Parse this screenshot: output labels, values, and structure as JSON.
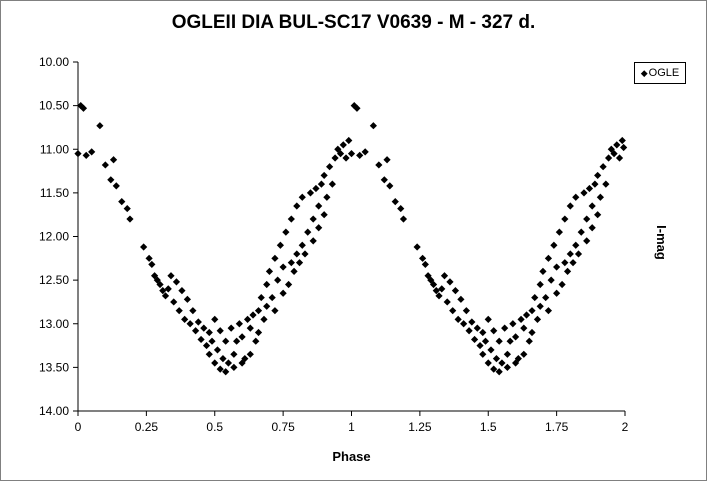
{
  "chart_data": {
    "type": "scatter",
    "title": "OGLEII DIA BUL-SC17 V0639 - M - 327 d.",
    "xlabel": "Phase",
    "ylabel": "I-mag",
    "xlim": [
      0,
      2
    ],
    "ylim": [
      10.0,
      14.0
    ],
    "y_inverted": true,
    "x_ticks": [
      "0",
      "0.25",
      "0.5",
      "0.75",
      "1",
      "1.25",
      "1.5",
      "1.75",
      "2"
    ],
    "x_tick_values": [
      0,
      0.25,
      0.5,
      0.75,
      1,
      1.25,
      1.5,
      1.75,
      2
    ],
    "y_ticks": [
      "10.00",
      "10.50",
      "11.00",
      "11.50",
      "12.00",
      "12.50",
      "13.00",
      "13.50",
      "14.00"
    ],
    "y_tick_values": [
      10.0,
      10.5,
      11.0,
      11.5,
      12.0,
      12.5,
      13.0,
      13.5,
      14.0
    ],
    "grid": false,
    "legend_position": "top-right",
    "marker": "diamond",
    "color": "#000000",
    "series": [
      {
        "name": "OGLE",
        "points": [
          [
            0.0,
            11.05
          ],
          [
            0.01,
            10.5
          ],
          [
            0.02,
            10.53
          ],
          [
            0.03,
            11.07
          ],
          [
            0.05,
            11.03
          ],
          [
            0.08,
            10.73
          ],
          [
            0.1,
            11.18
          ],
          [
            0.12,
            11.35
          ],
          [
            0.13,
            11.12
          ],
          [
            0.14,
            11.42
          ],
          [
            0.16,
            11.6
          ],
          [
            0.18,
            11.68
          ],
          [
            0.19,
            11.8
          ],
          [
            0.24,
            12.12
          ],
          [
            0.26,
            12.25
          ],
          [
            0.27,
            12.32
          ],
          [
            0.28,
            12.45
          ],
          [
            0.29,
            12.5
          ],
          [
            0.3,
            12.55
          ],
          [
            0.31,
            12.62
          ],
          [
            0.32,
            12.68
          ],
          [
            0.33,
            12.6
          ],
          [
            0.34,
            12.45
          ],
          [
            0.35,
            12.75
          ],
          [
            0.36,
            12.52
          ],
          [
            0.37,
            12.85
          ],
          [
            0.38,
            12.62
          ],
          [
            0.39,
            12.95
          ],
          [
            0.4,
            12.72
          ],
          [
            0.41,
            13.0
          ],
          [
            0.42,
            12.85
          ],
          [
            0.43,
            13.08
          ],
          [
            0.44,
            12.98
          ],
          [
            0.45,
            13.18
          ],
          [
            0.46,
            13.05
          ],
          [
            0.47,
            13.25
          ],
          [
            0.48,
            13.35
          ],
          [
            0.48,
            13.1
          ],
          [
            0.49,
            13.2
          ],
          [
            0.5,
            13.45
          ],
          [
            0.5,
            12.95
          ],
          [
            0.51,
            13.3
          ],
          [
            0.52,
            13.52
          ],
          [
            0.52,
            13.08
          ],
          [
            0.53,
            13.4
          ],
          [
            0.54,
            13.55
          ],
          [
            0.54,
            13.2
          ],
          [
            0.55,
            13.45
          ],
          [
            0.56,
            13.05
          ],
          [
            0.57,
            13.35
          ],
          [
            0.57,
            13.5
          ],
          [
            0.58,
            13.2
          ],
          [
            0.59,
            13.0
          ],
          [
            0.6,
            13.45
          ],
          [
            0.6,
            13.15
          ],
          [
            0.61,
            13.4
          ],
          [
            0.62,
            12.95
          ],
          [
            0.63,
            13.35
          ],
          [
            0.63,
            13.05
          ],
          [
            0.64,
            12.9
          ],
          [
            0.65,
            13.2
          ],
          [
            0.66,
            12.85
          ],
          [
            0.66,
            13.1
          ],
          [
            0.67,
            12.7
          ],
          [
            0.68,
            12.95
          ],
          [
            0.69,
            12.55
          ],
          [
            0.69,
            12.8
          ],
          [
            0.7,
            12.4
          ],
          [
            0.71,
            12.7
          ],
          [
            0.72,
            12.25
          ],
          [
            0.72,
            12.85
          ],
          [
            0.73,
            12.5
          ],
          [
            0.74,
            12.1
          ],
          [
            0.75,
            12.65
          ],
          [
            0.75,
            12.35
          ],
          [
            0.76,
            11.95
          ],
          [
            0.77,
            12.55
          ],
          [
            0.78,
            12.3
          ],
          [
            0.78,
            11.8
          ],
          [
            0.79,
            12.4
          ],
          [
            0.8,
            12.2
          ],
          [
            0.8,
            11.65
          ],
          [
            0.81,
            12.3
          ],
          [
            0.82,
            12.1
          ],
          [
            0.82,
            11.55
          ],
          [
            0.83,
            12.2
          ],
          [
            0.84,
            11.95
          ],
          [
            0.85,
            11.5
          ],
          [
            0.86,
            12.05
          ],
          [
            0.86,
            11.8
          ],
          [
            0.87,
            11.45
          ],
          [
            0.88,
            11.9
          ],
          [
            0.88,
            11.65
          ],
          [
            0.89,
            11.4
          ],
          [
            0.9,
            11.75
          ],
          [
            0.9,
            11.3
          ],
          [
            0.91,
            11.55
          ],
          [
            0.92,
            11.2
          ],
          [
            0.93,
            11.4
          ],
          [
            0.94,
            11.1
          ],
          [
            0.95,
            11.0
          ],
          [
            0.96,
            11.05
          ],
          [
            0.97,
            10.95
          ],
          [
            0.98,
            11.1
          ],
          [
            0.99,
            10.9
          ],
          [
            1.0,
            11.05
          ],
          [
            1.01,
            10.5
          ],
          [
            1.02,
            10.53
          ],
          [
            1.03,
            11.07
          ],
          [
            1.05,
            11.03
          ],
          [
            1.08,
            10.73
          ],
          [
            1.1,
            11.18
          ],
          [
            1.12,
            11.35
          ],
          [
            1.13,
            11.12
          ],
          [
            1.14,
            11.42
          ],
          [
            1.16,
            11.6
          ],
          [
            1.18,
            11.68
          ],
          [
            1.19,
            11.8
          ],
          [
            1.24,
            12.12
          ],
          [
            1.26,
            12.25
          ],
          [
            1.27,
            12.32
          ],
          [
            1.28,
            12.45
          ],
          [
            1.29,
            12.5
          ],
          [
            1.3,
            12.55
          ],
          [
            1.31,
            12.62
          ],
          [
            1.32,
            12.68
          ],
          [
            1.33,
            12.6
          ],
          [
            1.34,
            12.45
          ],
          [
            1.35,
            12.75
          ],
          [
            1.36,
            12.52
          ],
          [
            1.37,
            12.85
          ],
          [
            1.38,
            12.62
          ],
          [
            1.39,
            12.95
          ],
          [
            1.4,
            12.72
          ],
          [
            1.41,
            13.0
          ],
          [
            1.42,
            12.85
          ],
          [
            1.43,
            13.08
          ],
          [
            1.44,
            12.98
          ],
          [
            1.45,
            13.18
          ],
          [
            1.46,
            13.05
          ],
          [
            1.47,
            13.25
          ],
          [
            1.48,
            13.35
          ],
          [
            1.48,
            13.1
          ],
          [
            1.49,
            13.2
          ],
          [
            1.5,
            13.45
          ],
          [
            1.5,
            12.95
          ],
          [
            1.51,
            13.3
          ],
          [
            1.52,
            13.52
          ],
          [
            1.52,
            13.08
          ],
          [
            1.53,
            13.4
          ],
          [
            1.54,
            13.55
          ],
          [
            1.54,
            13.2
          ],
          [
            1.55,
            13.45
          ],
          [
            1.56,
            13.05
          ],
          [
            1.57,
            13.35
          ],
          [
            1.57,
            13.5
          ],
          [
            1.58,
            13.2
          ],
          [
            1.59,
            13.0
          ],
          [
            1.6,
            13.45
          ],
          [
            1.6,
            13.15
          ],
          [
            1.61,
            13.4
          ],
          [
            1.62,
            12.95
          ],
          [
            1.63,
            13.35
          ],
          [
            1.63,
            13.05
          ],
          [
            1.64,
            12.9
          ],
          [
            1.65,
            13.2
          ],
          [
            1.66,
            12.85
          ],
          [
            1.66,
            13.1
          ],
          [
            1.67,
            12.7
          ],
          [
            1.68,
            12.95
          ],
          [
            1.69,
            12.55
          ],
          [
            1.69,
            12.8
          ],
          [
            1.7,
            12.4
          ],
          [
            1.71,
            12.7
          ],
          [
            1.72,
            12.25
          ],
          [
            1.72,
            12.85
          ],
          [
            1.73,
            12.5
          ],
          [
            1.74,
            12.1
          ],
          [
            1.75,
            12.65
          ],
          [
            1.75,
            12.35
          ],
          [
            1.76,
            11.95
          ],
          [
            1.77,
            12.55
          ],
          [
            1.78,
            12.3
          ],
          [
            1.78,
            11.8
          ],
          [
            1.79,
            12.4
          ],
          [
            1.8,
            12.2
          ],
          [
            1.8,
            11.65
          ],
          [
            1.81,
            12.3
          ],
          [
            1.82,
            12.1
          ],
          [
            1.82,
            11.55
          ],
          [
            1.83,
            12.2
          ],
          [
            1.84,
            11.95
          ],
          [
            1.85,
            11.5
          ],
          [
            1.86,
            12.05
          ],
          [
            1.86,
            11.8
          ],
          [
            1.87,
            11.45
          ],
          [
            1.88,
            11.9
          ],
          [
            1.88,
            11.65
          ],
          [
            1.89,
            11.4
          ],
          [
            1.9,
            11.75
          ],
          [
            1.9,
            11.3
          ],
          [
            1.91,
            11.55
          ],
          [
            1.92,
            11.2
          ],
          [
            1.93,
            11.4
          ],
          [
            1.94,
            11.1
          ],
          [
            1.95,
            11.0
          ],
          [
            1.96,
            11.05
          ],
          [
            1.97,
            10.95
          ],
          [
            1.98,
            11.1
          ],
          [
            1.99,
            10.9
          ],
          [
            1.995,
            10.98
          ]
        ]
      }
    ]
  },
  "legend": {
    "marker_glyph": "◆",
    "label": "OGLE"
  }
}
